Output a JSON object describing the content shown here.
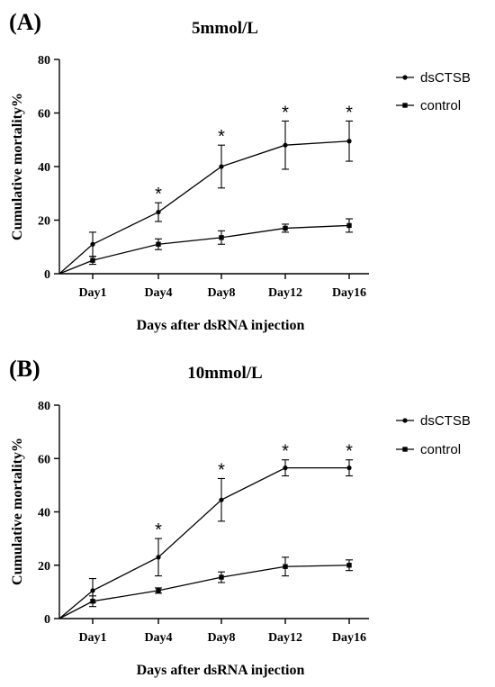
{
  "chart_data": [
    {
      "panel": "(A)",
      "type": "line",
      "title": "5mmol/L",
      "xlabel": "Days after dsRNA injection",
      "ylabel": "Cumulative mortality%",
      "ylim": [
        0,
        80
      ],
      "yticks": [
        "0",
        "20",
        "40",
        "60",
        "80"
      ],
      "categories": [
        "Day1",
        "Day4",
        "Day8",
        "Day12",
        "Day16"
      ],
      "origin": [
        0,
        0
      ],
      "series": [
        {
          "name": "dsCTSB",
          "marker": "circle",
          "values": [
            11,
            23,
            40,
            48,
            49.5
          ],
          "errors": [
            4.5,
            3.5,
            8,
            9,
            7.5
          ],
          "significance": [
            "",
            "*",
            "*",
            "*",
            "*"
          ]
        },
        {
          "name": "control",
          "marker": "square",
          "values": [
            5,
            11,
            13.5,
            17,
            18
          ],
          "errors": [
            1.5,
            2,
            2.5,
            1.5,
            2.5
          ],
          "significance": [
            "",
            "",
            "",
            "",
            ""
          ]
        }
      ],
      "legend": "top-right",
      "grid": false
    },
    {
      "panel": "(B)",
      "type": "line",
      "title": "10mmol/L",
      "xlabel": "Days after dsRNA injection",
      "ylabel": "Cumulative mortality%",
      "ylim": [
        0,
        80
      ],
      "yticks": [
        "0",
        "20",
        "40",
        "60",
        "80"
      ],
      "categories": [
        "Day1",
        "Day4",
        "Day8",
        "Day12",
        "Day16"
      ],
      "origin": [
        0,
        0
      ],
      "series": [
        {
          "name": "dsCTSB",
          "marker": "circle",
          "values": [
            10.5,
            23,
            44.5,
            56.5,
            56.5
          ],
          "errors": [
            4.5,
            7,
            8,
            3,
            3
          ],
          "significance": [
            "",
            "*",
            "*",
            "*",
            "*"
          ]
        },
        {
          "name": "control",
          "marker": "square",
          "values": [
            6.5,
            10.5,
            15.5,
            19.5,
            20
          ],
          "errors": [
            2,
            1,
            2,
            3.5,
            2
          ],
          "significance": [
            "",
            "",
            "",
            "",
            ""
          ]
        }
      ],
      "legend": "top-right",
      "grid": false
    }
  ]
}
